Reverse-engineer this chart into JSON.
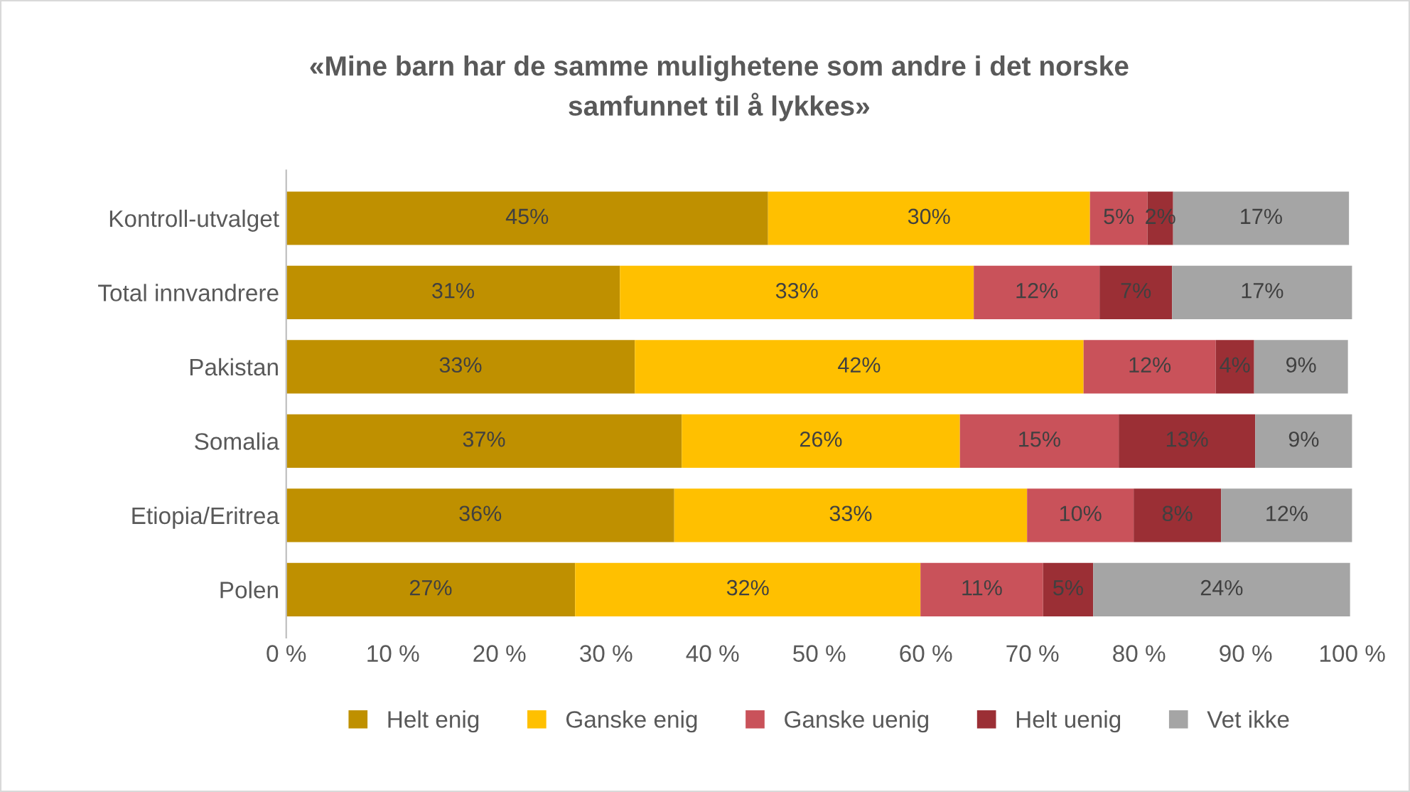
{
  "chart_data": {
    "type": "bar",
    "orientation": "horizontal",
    "stacked": true,
    "title": "«Mine barn har de samme mulighetene som andre i det norske\nsamfunnet til å lykkes»",
    "categories": [
      "Kontroll-utvalget",
      "Total innvandrere",
      "Pakistan",
      "Somalia",
      "Etiopia/Eritrea",
      "Polen"
    ],
    "series": [
      {
        "name": "Helt enig",
        "color": "#bf9000",
        "values": [
          45.2,
          31.3,
          32.7,
          37.1,
          36.4,
          27.1
        ],
        "value_labels": [
          "45%",
          "31%",
          "33%",
          "37%",
          "36%",
          "27%"
        ]
      },
      {
        "name": "Ganske enig",
        "color": "#ffc000",
        "values": [
          30.2,
          33.2,
          42.1,
          26.1,
          33.1,
          32.4
        ],
        "value_labels": [
          "30%",
          "33%",
          "42%",
          "26%",
          "33%",
          "32%"
        ]
      },
      {
        "name": "Ganske uenig",
        "color": "#c9525a",
        "values": [
          5.4,
          11.8,
          12.4,
          14.9,
          10.0,
          11.5
        ],
        "value_labels": [
          "5%",
          "12%",
          "12%",
          "15%",
          "10%",
          "11%"
        ]
      },
      {
        "name": "Helt uenig",
        "color": "#9b2f35",
        "values": [
          2.4,
          6.8,
          3.6,
          12.8,
          8.2,
          4.7
        ],
        "value_labels": [
          "2%",
          "7%",
          "4%",
          "13%",
          "8%",
          "5%"
        ]
      },
      {
        "name": "Vet ikke",
        "color": "#a5a5a5",
        "values": [
          16.5,
          16.9,
          8.8,
          9.1,
          12.3,
          24.1
        ],
        "value_labels": [
          "17%",
          "17%",
          "9%",
          "9%",
          "12%",
          "24%"
        ]
      }
    ],
    "xlim": [
      0,
      100
    ],
    "xticks": [
      {
        "value": 0,
        "label": "0 %"
      },
      {
        "value": 10,
        "label": "10 %"
      },
      {
        "value": 20,
        "label": "20 %"
      },
      {
        "value": 30,
        "label": "30 %"
      },
      {
        "value": 40,
        "label": "40 %"
      },
      {
        "value": 50,
        "label": "50 %"
      },
      {
        "value": 60,
        "label": "60 %"
      },
      {
        "value": 70,
        "label": "70 %"
      },
      {
        "value": 80,
        "label": "80 %"
      },
      {
        "value": 90,
        "label": "90 %"
      },
      {
        "value": 100,
        "label": "100 %"
      }
    ],
    "legend": "bottom"
  }
}
